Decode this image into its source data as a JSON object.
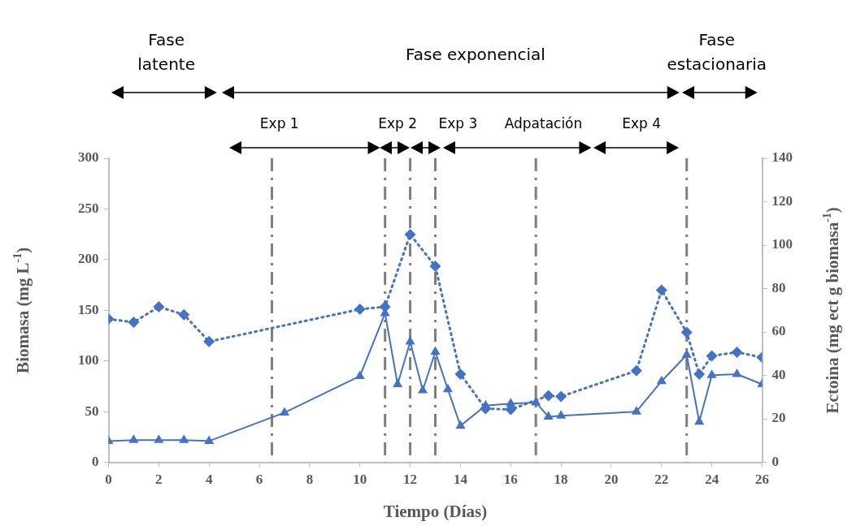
{
  "chart_data": {
    "type": "line",
    "xlabel": "Tiempo (Días)",
    "ylabel": "Biomasa (mg L$^{-1}$)",
    "y2label": "Ectoina (mg ect g biomasa$^{-1}$)",
    "series": [
      {
        "color": "#4472c4",
        "marker": "triangle",
        "line_style": "solid",
        "x": [
          0,
          1,
          2,
          3,
          4,
          7,
          10,
          11,
          11.5,
          12,
          12.5,
          13,
          13.5,
          14,
          15,
          16,
          17,
          17.5,
          18,
          21,
          22,
          23,
          23.5,
          24,
          25,
          26
        ],
        "values": [
          21,
          22,
          22,
          22,
          21,
          49,
          85,
          147,
          77,
          119,
          71,
          109,
          72,
          36,
          56,
          58,
          59,
          45,
          46,
          50,
          80,
          106,
          40,
          86,
          87,
          77
        ]
      },
      {
        "color": "#4472c4",
        "marker": "diamond",
        "line_style": "dotted",
        "axis": "y2",
        "x": [
          0,
          1,
          2,
          3,
          4,
          10,
          11,
          12,
          13,
          14,
          15,
          16,
          17.5,
          18,
          21,
          22,
          23,
          23.5,
          24,
          25,
          26
        ],
        "values": [
          66,
          64.5,
          71.6,
          68,
          55.6,
          70.5,
          71.6,
          104.9,
          90.3,
          40.6,
          24.7,
          24.3,
          30.7,
          30.3,
          42.2,
          79.3,
          59.8,
          40.6,
          49,
          50.7,
          48.3
        ]
      }
    ],
    "xlim": [
      0,
      26
    ],
    "xticks": [
      0,
      2,
      4,
      6,
      8,
      10,
      12,
      14,
      16,
      18,
      20,
      22,
      24,
      26
    ],
    "ylim": [
      0,
      300
    ],
    "yticks": [
      0,
      50,
      100,
      150,
      200,
      250,
      300
    ],
    "y2lim": [
      0,
      140
    ],
    "y2ticks": [
      0,
      20,
      40,
      60,
      80,
      100,
      120,
      140
    ],
    "ref_lines": [
      {
        "axis": "x",
        "value": 6.5,
        "color": "#7f7f7f",
        "line_style": "dashed"
      },
      {
        "axis": "x",
        "value": 11,
        "color": "#7f7f7f",
        "line_style": "dashed"
      },
      {
        "axis": "x",
        "value": 12,
        "color": "#7f7f7f",
        "line_style": "dashed"
      },
      {
        "axis": "x",
        "value": 13,
        "color": "#7f7f7f",
        "line_style": "dashed"
      },
      {
        "axis": "x",
        "value": 17,
        "color": "#7f7f7f",
        "line_style": "dashed"
      },
      {
        "axis": "x",
        "value": 23,
        "color": "#7f7f7f",
        "line_style": "dashed"
      }
    ],
    "annotations": [
      "Fase latente",
      "Fase exponencial",
      "Fase estacionaria",
      "Exp 1",
      "Exp 2",
      "Exp 3",
      "Adpatación",
      "Exp 4"
    ],
    "grid": false,
    "legend": false
  }
}
